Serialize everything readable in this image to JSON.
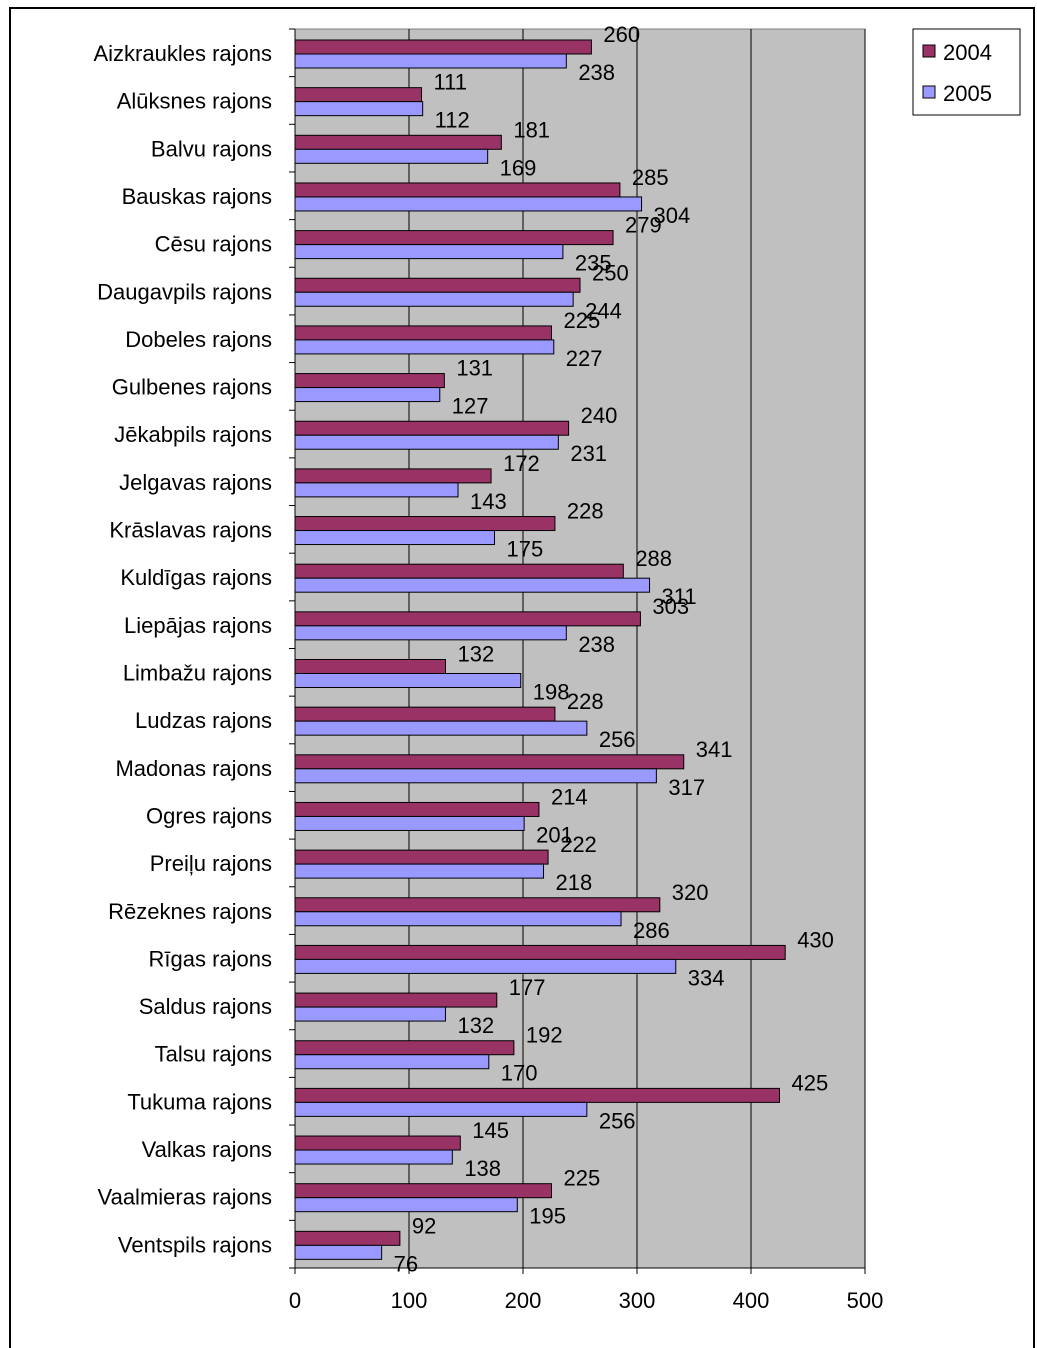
{
  "chart_data": {
    "type": "bar",
    "orientation": "horizontal",
    "categories": [
      "Aizkraukles rajons",
      "Alūksnes rajons",
      "Balvu rajons",
      "Bauskas rajons",
      "Cēsu rajons",
      "Daugavpils rajons",
      "Dobeles rajons",
      "Gulbenes rajons",
      "Jēkabpils rajons",
      "Jelgavas rajons",
      "Krāslavas rajons",
      "Kuldīgas rajons",
      "Liepājas rajons",
      "Limbažu rajons",
      "Ludzas rajons",
      "Madonas rajons",
      "Ogres rajons",
      "Preiļu rajons",
      "Rēzeknes rajons",
      "Rīgas rajons",
      "Saldus rajons",
      "Talsu rajons",
      "Tukuma rajons",
      "Valkas rajons",
      "Vaalmieras rajons",
      "Ventspils rajons"
    ],
    "series": [
      {
        "name": "2004",
        "color": "#993366",
        "values": [
          260,
          111,
          181,
          285,
          279,
          250,
          225,
          131,
          240,
          172,
          228,
          288,
          303,
          132,
          228,
          341,
          214,
          222,
          320,
          430,
          177,
          192,
          425,
          145,
          225,
          92
        ]
      },
      {
        "name": "2005",
        "color": "#9999ff",
        "values": [
          238,
          112,
          169,
          304,
          235,
          244,
          227,
          127,
          231,
          143,
          175,
          311,
          238,
          198,
          256,
          317,
          201,
          218,
          286,
          334,
          132,
          170,
          256,
          138,
          195,
          76
        ]
      }
    ],
    "xlim": [
      0,
      500
    ],
    "xticks": [
      "0",
      "100",
      "200",
      "300",
      "400",
      "500"
    ],
    "grid": true,
    "plot_background": "#c0c0c0",
    "legend_position": "top-right",
    "data_labels": true
  }
}
